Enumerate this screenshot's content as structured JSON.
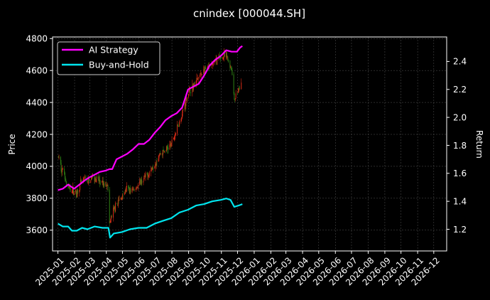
{
  "chart_data": {
    "type": "line",
    "title": "cnindex [000044.SH]",
    "ylabel": "Price",
    "y2label": "Return",
    "ylim": [
      3470,
      4810
    ],
    "y2lim": [
      1.045,
      2.575
    ],
    "xlim": [
      "2024-12-22",
      "2026-12-25"
    ],
    "grid": true,
    "legend_position": "top-left",
    "y_ticks": [
      3600,
      3800,
      4000,
      4200,
      4400,
      4600,
      4800
    ],
    "y2_ticks": [
      1.2,
      1.4,
      1.6,
      1.8,
      2.0,
      2.2,
      2.4
    ],
    "x_ticks": [
      "2025-01",
      "2025-02",
      "2025-03",
      "2025-04",
      "2025-05",
      "2025-06",
      "2025-07",
      "2025-08",
      "2025-09",
      "2025-10",
      "2025-11",
      "2025-12",
      "2026-01",
      "2026-02",
      "2026-03",
      "2026-04",
      "2026-05",
      "2026-06",
      "2026-07",
      "2026-08",
      "2026-09",
      "2026-10",
      "2026-11",
      "2026-12"
    ],
    "colors": {
      "up": "#d62a16",
      "down": "#2e7d14",
      "ai": "#ff00ff",
      "bh": "#00e5ee",
      "grid": "#555555"
    },
    "price_path": [
      [
        "2025-01-02",
        4060
      ],
      [
        "2025-01-07",
        3990
      ],
      [
        "2025-01-13",
        3960
      ],
      [
        "2025-01-17",
        3880
      ],
      [
        "2025-01-24",
        3860
      ],
      [
        "2025-02-05",
        3830
      ],
      [
        "2025-02-12",
        3890
      ],
      [
        "2025-02-20",
        3920
      ],
      [
        "2025-02-28",
        3900
      ],
      [
        "2025-03-06",
        3940
      ],
      [
        "2025-03-14",
        3920
      ],
      [
        "2025-03-21",
        3900
      ],
      [
        "2025-03-28",
        3880
      ],
      [
        "2025-04-03",
        3900
      ],
      [
        "2025-04-07",
        3640
      ],
      [
        "2025-04-14",
        3720
      ],
      [
        "2025-04-22",
        3770
      ],
      [
        "2025-04-30",
        3810
      ],
      [
        "2025-05-09",
        3860
      ],
      [
        "2025-05-20",
        3850
      ],
      [
        "2025-05-30",
        3880
      ],
      [
        "2025-06-10",
        3920
      ],
      [
        "2025-06-20",
        3960
      ],
      [
        "2025-06-30",
        4020
      ],
      [
        "2025-07-10",
        4080
      ],
      [
        "2025-07-20",
        4100
      ],
      [
        "2025-07-31",
        4140
      ],
      [
        "2025-08-10",
        4230
      ],
      [
        "2025-08-20",
        4330
      ],
      [
        "2025-08-31",
        4460
      ],
      [
        "2025-09-10",
        4500
      ],
      [
        "2025-09-20",
        4560
      ],
      [
        "2025-09-30",
        4600
      ],
      [
        "2025-10-10",
        4620
      ],
      [
        "2025-10-20",
        4660
      ],
      [
        "2025-10-31",
        4680
      ],
      [
        "2025-11-10",
        4690
      ],
      [
        "2025-11-20",
        4610
      ],
      [
        "2025-11-25",
        4420
      ],
      [
        "2025-12-02",
        4470
      ],
      [
        "2025-12-08",
        4510
      ]
    ],
    "series": [
      {
        "name": "AI Strategy",
        "axis": "right",
        "points": [
          [
            "2025-01-01",
            1.48
          ],
          [
            "2025-01-10",
            1.49
          ],
          [
            "2025-01-20",
            1.52
          ],
          [
            "2025-01-31",
            1.49
          ],
          [
            "2025-02-10",
            1.52
          ],
          [
            "2025-02-20",
            1.55
          ],
          [
            "2025-02-28",
            1.57
          ],
          [
            "2025-03-10",
            1.59
          ],
          [
            "2025-03-20",
            1.61
          ],
          [
            "2025-03-31",
            1.62
          ],
          [
            "2025-04-07",
            1.63
          ],
          [
            "2025-04-12",
            1.63
          ],
          [
            "2025-04-20",
            1.7
          ],
          [
            "2025-04-30",
            1.72
          ],
          [
            "2025-05-10",
            1.74
          ],
          [
            "2025-05-20",
            1.77
          ],
          [
            "2025-05-31",
            1.81
          ],
          [
            "2025-06-10",
            1.81
          ],
          [
            "2025-06-20",
            1.84
          ],
          [
            "2025-06-30",
            1.89
          ],
          [
            "2025-07-10",
            1.93
          ],
          [
            "2025-07-20",
            1.98
          ],
          [
            "2025-07-31",
            2.01
          ],
          [
            "2025-08-10",
            2.03
          ],
          [
            "2025-08-20",
            2.07
          ],
          [
            "2025-08-31",
            2.2
          ],
          [
            "2025-09-10",
            2.22
          ],
          [
            "2025-09-20",
            2.24
          ],
          [
            "2025-09-30",
            2.3
          ],
          [
            "2025-10-10",
            2.37
          ],
          [
            "2025-10-20",
            2.41
          ],
          [
            "2025-10-31",
            2.44
          ],
          [
            "2025-11-10",
            2.48
          ],
          [
            "2025-11-20",
            2.47
          ],
          [
            "2025-11-30",
            2.47
          ],
          [
            "2025-12-06",
            2.5
          ],
          [
            "2025-12-10",
            2.51
          ]
        ]
      },
      {
        "name": "Buy-and-Hold",
        "axis": "right",
        "points": [
          [
            "2025-01-01",
            1.24
          ],
          [
            "2025-01-10",
            1.22
          ],
          [
            "2025-01-20",
            1.22
          ],
          [
            "2025-01-27",
            1.19
          ],
          [
            "2025-02-05",
            1.19
          ],
          [
            "2025-02-15",
            1.21
          ],
          [
            "2025-02-25",
            1.2
          ],
          [
            "2025-03-10",
            1.22
          ],
          [
            "2025-03-25",
            1.21
          ],
          [
            "2025-04-05",
            1.21
          ],
          [
            "2025-04-08",
            1.14
          ],
          [
            "2025-04-15",
            1.17
          ],
          [
            "2025-04-30",
            1.18
          ],
          [
            "2025-05-15",
            1.2
          ],
          [
            "2025-05-31",
            1.21
          ],
          [
            "2025-06-15",
            1.21
          ],
          [
            "2025-06-30",
            1.24
          ],
          [
            "2025-07-15",
            1.26
          ],
          [
            "2025-07-31",
            1.28
          ],
          [
            "2025-08-15",
            1.32
          ],
          [
            "2025-08-31",
            1.34
          ],
          [
            "2025-09-15",
            1.37
          ],
          [
            "2025-09-30",
            1.38
          ],
          [
            "2025-10-15",
            1.4
          ],
          [
            "2025-10-31",
            1.41
          ],
          [
            "2025-11-10",
            1.42
          ],
          [
            "2025-11-18",
            1.41
          ],
          [
            "2025-11-25",
            1.36
          ],
          [
            "2025-12-03",
            1.37
          ],
          [
            "2025-12-10",
            1.38
          ]
        ]
      }
    ]
  }
}
